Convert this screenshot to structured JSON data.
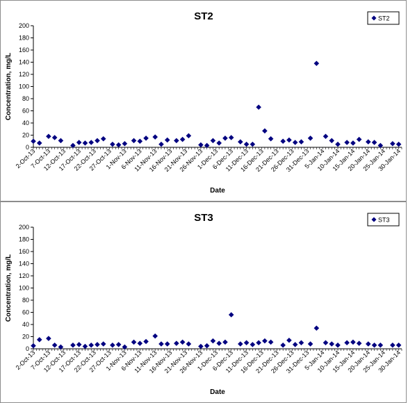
{
  "chart_data": [
    {
      "type": "scatter",
      "title": "ST2",
      "xlabel": "Date",
      "ylabel": "Concentration, mg/L",
      "ylim": [
        0,
        200
      ],
      "yticks": [
        0,
        20,
        40,
        60,
        80,
        100,
        120,
        140,
        160,
        180,
        200
      ],
      "xlim": [
        "2013-10-02",
        "2014-01-31"
      ],
      "xtick_labels": [
        "2-Oct-13",
        "7-Oct-13",
        "12-Oct-13",
        "17-Oct-13",
        "22-Oct-13",
        "27-Oct-13",
        "1-Nov-13",
        "6-Nov-13",
        "11-Nov-13",
        "16-Nov-13",
        "21-Nov-13",
        "26-Nov-13",
        "1-Dec-13",
        "6-Dec-13",
        "11-Dec-13",
        "16-Dec-13",
        "21-Dec-13",
        "26-Dec-13",
        "31-Dec-13",
        "5-Jan-14",
        "10-Jan-14",
        "15-Jan-14",
        "20-Jan-14",
        "25-Jan-14",
        "30-Jan-14"
      ],
      "grid": false,
      "legend": "top-right",
      "marker_color": "#000080",
      "series": [
        {
          "name": "ST2",
          "x": [
            "2013-10-02",
            "2013-10-04",
            "2013-10-07",
            "2013-10-09",
            "2013-10-11",
            "2013-10-15",
            "2013-10-17",
            "2013-10-19",
            "2013-10-21",
            "2013-10-23",
            "2013-10-25",
            "2013-10-28",
            "2013-10-30",
            "2013-11-01",
            "2013-11-04",
            "2013-11-06",
            "2013-11-08",
            "2013-11-11",
            "2013-11-13",
            "2013-11-15",
            "2013-11-18",
            "2013-11-20",
            "2013-11-22",
            "2013-11-26",
            "2013-11-28",
            "2013-11-30",
            "2013-12-02",
            "2013-12-04",
            "2013-12-06",
            "2013-12-09",
            "2013-12-11",
            "2013-12-13",
            "2013-12-15",
            "2013-12-17",
            "2013-12-19",
            "2013-12-23",
            "2013-12-25",
            "2013-12-27",
            "2013-12-29",
            "2014-01-01",
            "2014-01-03",
            "2014-01-06",
            "2014-01-08",
            "2014-01-10",
            "2014-01-13",
            "2014-01-15",
            "2014-01-17",
            "2014-01-20",
            "2014-01-22",
            "2014-01-24",
            "2014-01-28",
            "2014-01-30"
          ],
          "y": [
            10,
            7,
            18,
            16,
            11,
            3,
            8,
            7,
            8,
            11,
            14,
            5,
            4,
            6,
            11,
            10,
            15,
            17,
            5,
            12,
            11,
            13,
            19,
            4,
            3,
            11,
            7,
            15,
            16,
            9,
            5,
            5,
            66,
            27,
            14,
            10,
            12,
            8,
            9,
            15,
            138,
            18,
            11,
            5,
            8,
            7,
            13,
            9,
            8,
            3,
            6,
            5
          ]
        }
      ]
    },
    {
      "type": "scatter",
      "title": "ST3",
      "xlabel": "Date",
      "ylabel": "Concentration, mg/L",
      "ylim": [
        0,
        200
      ],
      "yticks": [
        0,
        20,
        40,
        60,
        80,
        100,
        120,
        140,
        160,
        180,
        200
      ],
      "xlim": [
        "2013-10-02",
        "2014-01-31"
      ],
      "xtick_labels": [
        "2-Oct-13",
        "7-Oct-13",
        "12-Oct-13",
        "17-Oct-13",
        "22-Oct-13",
        "27-Oct-13",
        "1-Nov-13",
        "6-Nov-13",
        "11-Nov-13",
        "16-Nov-13",
        "21-Nov-13",
        "26-Nov-13",
        "1-Dec-13",
        "6-Dec-13",
        "11-Dec-13",
        "16-Dec-13",
        "21-Dec-13",
        "26-Dec-13",
        "31-Dec-13",
        "5-Jan-14",
        "10-Jan-14",
        "15-Jan-14",
        "20-Jan-14",
        "25-Jan-14",
        "30-Jan-14"
      ],
      "grid": false,
      "legend": "top-right",
      "marker_color": "#000080",
      "series": [
        {
          "name": "ST3",
          "x": [
            "2013-10-02",
            "2013-10-04",
            "2013-10-07",
            "2013-10-09",
            "2013-10-11",
            "2013-10-15",
            "2013-10-17",
            "2013-10-19",
            "2013-10-21",
            "2013-10-23",
            "2013-10-25",
            "2013-10-28",
            "2013-10-30",
            "2013-11-01",
            "2013-11-04",
            "2013-11-06",
            "2013-11-08",
            "2013-11-11",
            "2013-11-13",
            "2013-11-15",
            "2013-11-18",
            "2013-11-20",
            "2013-11-22",
            "2013-11-26",
            "2013-11-28",
            "2013-11-30",
            "2013-12-02",
            "2013-12-04",
            "2013-12-06",
            "2013-12-09",
            "2013-12-11",
            "2013-12-13",
            "2013-12-15",
            "2013-12-17",
            "2013-12-19",
            "2013-12-23",
            "2013-12-25",
            "2013-12-27",
            "2013-12-29",
            "2014-01-01",
            "2014-01-03",
            "2014-01-06",
            "2014-01-08",
            "2014-01-10",
            "2014-01-13",
            "2014-01-15",
            "2014-01-17",
            "2014-01-20",
            "2014-01-22",
            "2014-01-24",
            "2014-01-28",
            "2014-01-30"
          ],
          "y": [
            5,
            15,
            17,
            6,
            3,
            6,
            7,
            4,
            6,
            7,
            8,
            6,
            7,
            3,
            11,
            9,
            12,
            21,
            8,
            8,
            9,
            11,
            8,
            4,
            5,
            13,
            9,
            11,
            56,
            8,
            10,
            7,
            10,
            13,
            11,
            6,
            14,
            7,
            10,
            8,
            34,
            10,
            8,
            6,
            10,
            11,
            9,
            8,
            6,
            6,
            6,
            6
          ]
        }
      ]
    }
  ]
}
